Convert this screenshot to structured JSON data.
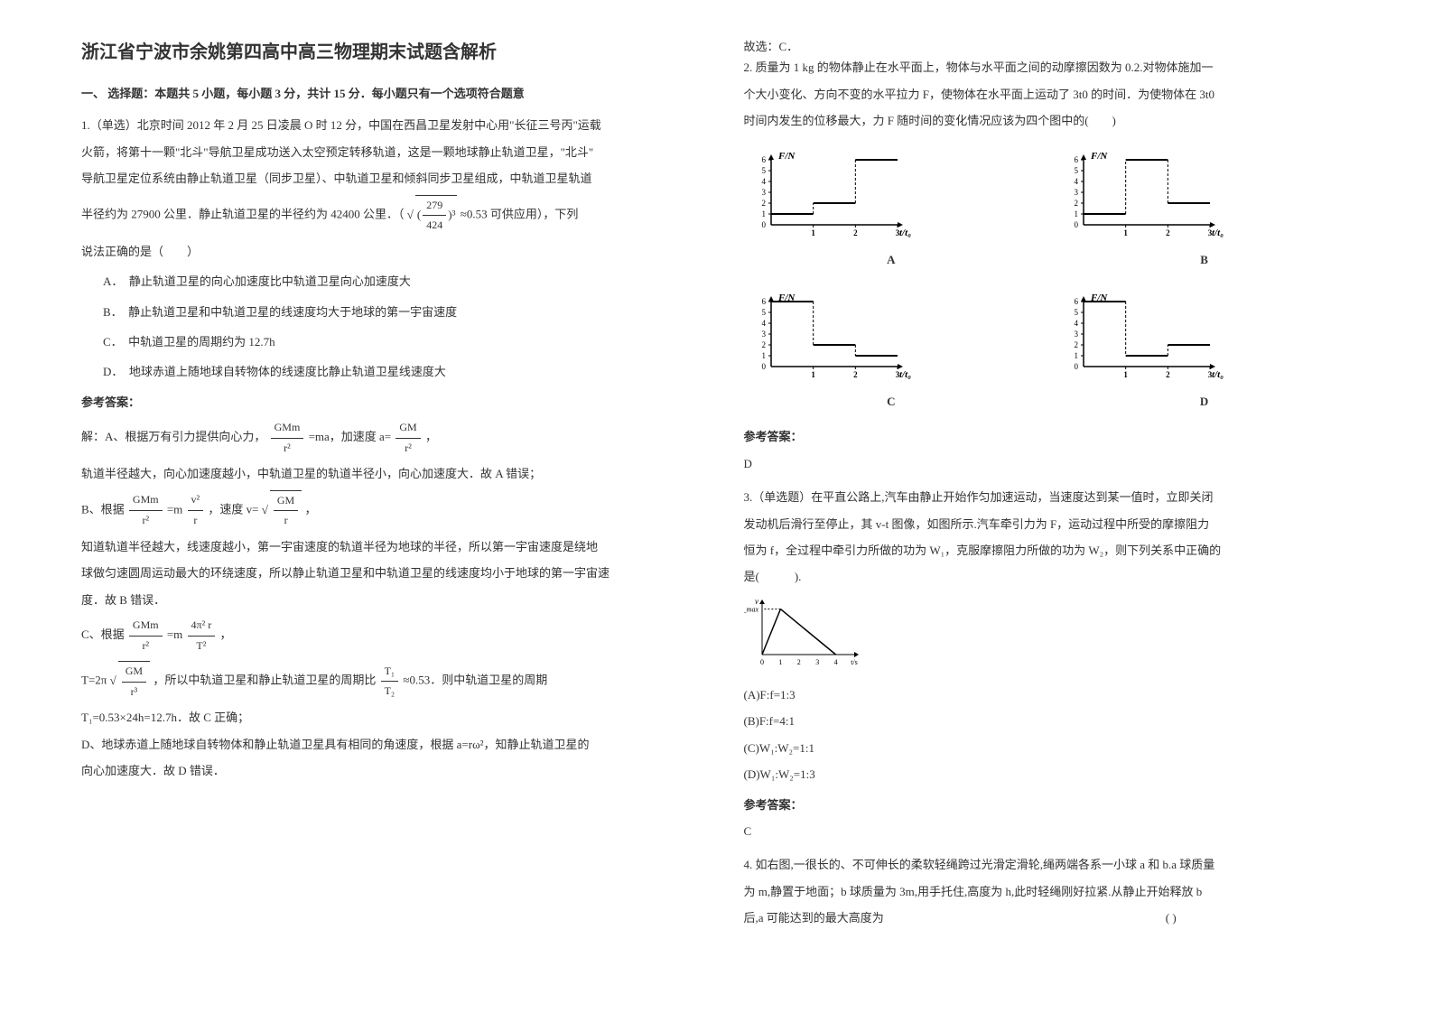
{
  "doc": {
    "title": "浙江省宁波市余姚第四高中高三物理期末试题含解析",
    "section1_header": "一、 选择题：本题共 5 小题，每小题 3 分，共计 15 分．每小题只有一个选项符合题意",
    "q1": {
      "stem_l1": "1.（单选）北京时间 2012 年 2 月 25 日凌晨 O 时 12 分，中国在西昌卫星发射中心用\"长征三号丙\"运载",
      "stem_l2": "火箭，将第十一颗\"北斗\"导航卫星成功送入太空预定转移轨道，这是一颗地球静止轨道卫星，\"北斗\"",
      "stem_l3": "导航卫星定位系统由静止轨道卫星（同步卫星）、中轨道卫星和倾斜同步卫星组成，中轨道卫星轨道",
      "stem_l4a": "半径约为 27900 公里．静止轨道卫星的半径约为 42400 公里．（",
      "stem_l4_frac_num": "279",
      "stem_l4_frac_den": "424",
      "stem_l4b": " ≈0.53 可供应用），下列",
      "stem_l5": "说法正确的是（　　）",
      "opt_a": "A．　静止轨道卫星的向心加速度比中轨道卫星向心加速度大",
      "opt_b": "B．　静止轨道卫星和中轨道卫星的线速度均大于地球的第一宇宙速度",
      "opt_c": "C．　中轨道卫星的周期约为 12.7h",
      "opt_d": "D．　地球赤道上随地球自转物体的线速度比静止轨道卫星线速度大",
      "answer_label": "参考答案：",
      "sol_l1a": "解：A、根据万有引力提供向心力，",
      "sol_l1b": "=ma，加速度 a=",
      "sol_l1c": "，",
      "sol_l2": "轨道半径越大，向心加速度越小，中轨道卫星的轨道半径小，向心加速度大．故 A 错误；",
      "sol_l3a": "B、根据",
      "sol_l3b": "=m",
      "sol_l3c": "，速度 v=",
      "sol_l3d": "，",
      "sol_l4": "知道轨道半径越大，线速度越小，第一宇宙速度的轨道半径为地球的半径，所以第一宇宙速度是绕地",
      "sol_l5": "球做匀速圆周运动最大的环绕速度，所以静止轨道卫星和中轨道卫星的线速度均小于地球的第一宇宙速",
      "sol_l6": "度．故 B 错误．",
      "sol_l7a": "C、根据",
      "sol_l7b": "=m",
      "sol_l7c": "，",
      "sol_l8a": "T=2π",
      "sol_l8b": "，所以中轨道卫星和静止轨道卫星的周期比",
      "sol_l8c": "≈0.53．则中轨道卫星的周期",
      "sol_l9": "T₁=0.53×24h=12.7h．故 C 正确；",
      "sol_l10": "D、地球赤道上随地球自转物体和静止轨道卫星具有相同的角速度，根据 a=rω²，知静止轨道卫星的",
      "sol_l11": "向心加速度大．故 D 错误．",
      "sol_l12": "故选：C．",
      "f_GMm": "GMm",
      "f_r2": "r²",
      "f_GM": "GM",
      "f_r": "r",
      "f_v2": "v²",
      "f_4pi2r": "4π² r",
      "f_T2": "T²",
      "f_r3": "r³",
      "f_T1": "T₁",
      "f_T2_": "T₂"
    },
    "q2": {
      "stem_l1": "2. 质量为 1 kg 的物体静止在水平面上，物体与水平面之间的动摩擦因数为 0.2.对物体施加一",
      "stem_l2": "个大小变化、方向不变的水平拉力 F，使物体在水平面上运动了 3t0 的时间．为使物体在 3t0",
      "stem_l3": "时间内发生的位移最大，力 F 随时间的变化情况应该为四个图中的(　　)",
      "answer_label": "参考答案：",
      "answer": "D",
      "chart": {
        "xlabel": "t/t₀",
        "ylabel": "F/N",
        "x_ticks": [
          "0",
          "1",
          "2",
          "3"
        ],
        "y_ticks": [
          "0",
          "1",
          "2",
          "3",
          "4",
          "5",
          "6"
        ],
        "y_max": 6,
        "x_max": 3,
        "line_color": "#000000",
        "axis_color": "#000000",
        "A": {
          "label": "A",
          "segments": [
            [
              0,
              1,
              1,
              1
            ],
            [
              1,
              2,
              2,
              2
            ],
            [
              2,
              6,
              3,
              6
            ]
          ]
        },
        "B": {
          "label": "B",
          "segments": [
            [
              0,
              1,
              1,
              1
            ],
            [
              1,
              6,
              2,
              6
            ],
            [
              2,
              2,
              3,
              2
            ]
          ]
        },
        "C": {
          "label": "C",
          "segments": [
            [
              0,
              6,
              1,
              6
            ],
            [
              1,
              2,
              2,
              2
            ],
            [
              2,
              1,
              3,
              1
            ]
          ]
        },
        "D": {
          "label": "D",
          "segments": [
            [
              0,
              6,
              1,
              6
            ],
            [
              1,
              1,
              2,
              1
            ],
            [
              2,
              2,
              3,
              2
            ]
          ]
        }
      }
    },
    "q3": {
      "stem_l1": "3.（单选题）在平直公路上,汽车由静止开始作匀加速运动，当速度达到某一值时，立即关闭",
      "stem_l2": "发动机后滑行至停止，其 v-t 图像，如图所示.汽车牵引力为 F，运动过程中所受的摩擦阻力",
      "stem_l3": "恒为 f，全过程中牵引力所做的功为 W₁，克服摩擦阻力所做的功为 W₂，则下列关系中正确的",
      "stem_l4": "是(　　　).",
      "vt_chart": {
        "xlabel_ticks": [
          "0",
          "1",
          "2",
          "3",
          "4",
          "t/s"
        ],
        "ylabel": "v",
        "vmax_label": "v_max",
        "peak_x": 1,
        "end_x": 4,
        "line_color": "#000000"
      },
      "opt_a": "(A)F:f=1:3",
      "opt_b": "(B)F:f=4:1",
      "opt_c": "(C)W₁:W₂=1:1",
      "opt_d": "(D)W₁:W₂=1:3",
      "answer_label": "参考答案：",
      "answer": "C"
    },
    "q4": {
      "stem_l1": "4. 如右图,一很长的、不可伸长的柔软轻绳跨过光滑定滑轮,绳两端各系一小球 a 和 b.a 球质量",
      "stem_l2": "为 m,静置于地面；b 球质量为 3m,用手托住,高度为 h,此时轻绳刚好拉紧.从静止开始释放 b",
      "stem_l3": "后,a 可能达到的最大高度为　　　　　　　　　　　　　　　　　　　　　　　　(   )"
    }
  }
}
